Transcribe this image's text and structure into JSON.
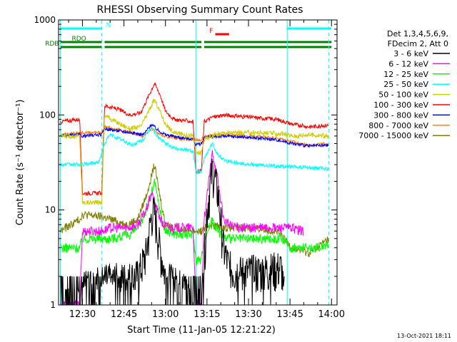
{
  "chart_data": {
    "type": "line",
    "title": "RHESSI Observing Summary Count Rates",
    "xlabel": "Start Time (11-Jan-05 12:21:22)",
    "ylabel": "Count Rate (s⁻¹ detector⁻¹)",
    "y_scale": "log",
    "ylim": [
      1,
      1000
    ],
    "y_ticks": [
      1,
      10,
      100,
      1000
    ],
    "y_tick_labels": [
      "1",
      "10",
      "100",
      "1000"
    ],
    "xlim": [
      "12:21:22",
      "14:02:00"
    ],
    "x_ticks": [
      "12:30",
      "12:45",
      "13:00",
      "13:15",
      "13:30",
      "13:45",
      "14:00"
    ],
    "timestamp": "13-Oct-2021 18:11",
    "legend_header": [
      "Det 1,3,4,5,6,9,",
      "FDecim 2, Att 0"
    ],
    "legend_position": "right",
    "series": [
      {
        "name": "3 - 6 keV",
        "color": "#000000",
        "points": [
          [
            "12:22",
            1
          ],
          [
            "12:29",
            1
          ],
          [
            "12:30",
            1.6
          ],
          [
            "12:38",
            1.8
          ],
          [
            "12:46",
            1.9
          ],
          [
            "12:50",
            2
          ],
          [
            "12:53",
            3.5
          ],
          [
            "12:55",
            9
          ],
          [
            "12:56",
            9.5
          ],
          [
            "12:58",
            4
          ],
          [
            "13:00",
            2
          ],
          [
            "13:02",
            1.8
          ],
          [
            "13:07",
            1.5
          ],
          [
            "13:10",
            1
          ],
          [
            "13:13",
            1
          ],
          [
            "13:15",
            10
          ],
          [
            "13:17",
            28
          ],
          [
            "13:19",
            15
          ],
          [
            "13:21",
            4
          ],
          [
            "13:23",
            2.5
          ],
          [
            "13:27",
            2.2
          ],
          [
            "13:35",
            2.3
          ],
          [
            "13:42",
            2.5
          ],
          [
            "13:43",
            1
          ]
        ]
      },
      {
        "name": "6 - 12 keV",
        "color": "#ff00ff",
        "points": [
          [
            "12:22",
            1
          ],
          [
            "12:29",
            1
          ],
          [
            "12:30",
            6
          ],
          [
            "12:37",
            6
          ],
          [
            "12:40",
            6.5
          ],
          [
            "12:46",
            6.5
          ],
          [
            "12:50",
            7
          ],
          [
            "12:53",
            10
          ],
          [
            "12:55",
            15
          ],
          [
            "12:57",
            10
          ],
          [
            "12:59",
            7
          ],
          [
            "13:02",
            6.5
          ],
          [
            "13:10",
            6.5
          ],
          [
            "13:11",
            1
          ],
          [
            "13:13",
            1
          ],
          [
            "13:14",
            8
          ],
          [
            "13:17",
            42
          ],
          [
            "13:19",
            20
          ],
          [
            "13:21",
            8
          ],
          [
            "13:23",
            7
          ],
          [
            "13:27",
            6.5
          ],
          [
            "13:35",
            6.5
          ],
          [
            "13:45",
            6.5
          ],
          [
            "13:50",
            6
          ]
        ]
      },
      {
        "name": "12 - 25 keV",
        "color": "#00ff00",
        "points": [
          [
            "12:22",
            4
          ],
          [
            "12:29",
            4
          ],
          [
            "12:30",
            5
          ],
          [
            "12:37",
            5
          ],
          [
            "12:40",
            5
          ],
          [
            "12:47",
            5.5
          ],
          [
            "12:51",
            7
          ],
          [
            "12:54",
            12
          ],
          [
            "12:56",
            20
          ],
          [
            "12:58",
            10
          ],
          [
            "13:00",
            6
          ],
          [
            "13:05",
            5.5
          ],
          [
            "13:10",
            5.5
          ],
          [
            "13:11",
            3
          ],
          [
            "13:13",
            3
          ],
          [
            "13:14",
            5
          ],
          [
            "13:17",
            8
          ],
          [
            "13:19",
            6
          ],
          [
            "13:22",
            5
          ],
          [
            "13:30",
            5
          ],
          [
            "13:42",
            5
          ],
          [
            "13:45",
            4
          ],
          [
            "13:55",
            4
          ],
          [
            "13:59",
            4.5
          ]
        ]
      },
      {
        "name": "25 - 50 keV",
        "color": "#00ffff",
        "points": [
          [
            "12:22",
            30
          ],
          [
            "12:29",
            30
          ],
          [
            "12:30",
            30
          ],
          [
            "12:36",
            32
          ],
          [
            "12:38",
            50
          ],
          [
            "12:40",
            62
          ],
          [
            "12:44",
            55
          ],
          [
            "12:48",
            48
          ],
          [
            "12:52",
            55
          ],
          [
            "12:55",
            75
          ],
          [
            "12:57",
            60
          ],
          [
            "13:00",
            50
          ],
          [
            "13:03",
            45
          ],
          [
            "13:10",
            42
          ],
          [
            "13:11",
            25
          ],
          [
            "13:13",
            25
          ],
          [
            "13:14",
            35
          ],
          [
            "13:17",
            50
          ],
          [
            "13:19",
            38
          ],
          [
            "13:22",
            33
          ],
          [
            "13:30",
            30
          ],
          [
            "13:40",
            29
          ],
          [
            "13:50",
            28
          ],
          [
            "13:59",
            27
          ]
        ]
      },
      {
        "name": "50 - 100 keV",
        "color": "#cccc00",
        "points": [
          [
            "12:22",
            60
          ],
          [
            "12:29",
            60
          ],
          [
            "12:30",
            12
          ],
          [
            "12:37",
            12
          ],
          [
            "12:38",
            100
          ],
          [
            "12:42",
            85
          ],
          [
            "12:47",
            72
          ],
          [
            "12:51",
            75
          ],
          [
            "12:54",
            110
          ],
          [
            "12:56",
            145
          ],
          [
            "12:58",
            110
          ],
          [
            "13:00",
            80
          ],
          [
            "13:03",
            65
          ],
          [
            "13:10",
            60
          ],
          [
            "13:11",
            40
          ],
          [
            "13:13",
            40
          ],
          [
            "13:14",
            55
          ],
          [
            "13:18",
            62
          ],
          [
            "13:21",
            65
          ],
          [
            "13:27",
            65
          ],
          [
            "13:35",
            65
          ],
          [
            "13:42",
            63
          ],
          [
            "13:46",
            60
          ],
          [
            "13:52",
            62
          ],
          [
            "13:59",
            60
          ]
        ]
      },
      {
        "name": "100 - 300 keV",
        "color": "#ff0000",
        "points": [
          [
            "12:22",
            85
          ],
          [
            "12:29",
            90
          ],
          [
            "12:30",
            15
          ],
          [
            "12:37",
            15
          ],
          [
            "12:38",
            125
          ],
          [
            "12:43",
            115
          ],
          [
            "12:47",
            100
          ],
          [
            "12:51",
            105
          ],
          [
            "12:54",
            160
          ],
          [
            "12:56",
            215
          ],
          [
            "12:58",
            165
          ],
          [
            "13:00",
            110
          ],
          [
            "13:03",
            90
          ],
          [
            "13:10",
            85
          ],
          [
            "13:11",
            25
          ],
          [
            "13:13",
            26
          ],
          [
            "13:14",
            85
          ],
          [
            "13:17",
            95
          ],
          [
            "13:21",
            100
          ],
          [
            "13:30",
            95
          ],
          [
            "13:40",
            90
          ],
          [
            "13:46",
            80
          ],
          [
            "13:52",
            75
          ],
          [
            "13:59",
            78
          ]
        ]
      },
      {
        "name": "300 - 800 keV",
        "color": "#0000ff",
        "points": [
          [
            "12:22",
            60
          ],
          [
            "12:29",
            62
          ],
          [
            "12:30",
            60
          ],
          [
            "12:37",
            62
          ],
          [
            "12:38",
            72
          ],
          [
            "12:43",
            68
          ],
          [
            "12:48",
            65
          ],
          [
            "12:52",
            62
          ],
          [
            "12:55",
            80
          ],
          [
            "12:57",
            70
          ],
          [
            "13:00",
            62
          ],
          [
            "13:05",
            58
          ],
          [
            "13:10",
            56
          ],
          [
            "13:11",
            48
          ],
          [
            "13:13",
            50
          ],
          [
            "13:14",
            58
          ],
          [
            "13:21",
            60
          ],
          [
            "13:30",
            58
          ],
          [
            "13:40",
            55
          ],
          [
            "13:46",
            50
          ],
          [
            "13:52",
            47
          ],
          [
            "13:59",
            48
          ]
        ]
      },
      {
        "name": "800 - 7000 keV",
        "color": "#ff8000",
        "points": [
          [
            "12:22",
            62
          ],
          [
            "12:29",
            65
          ],
          [
            "12:30",
            65
          ],
          [
            "12:37",
            65
          ],
          [
            "12:38",
            75
          ],
          [
            "12:43",
            70
          ],
          [
            "12:48",
            65
          ],
          [
            "12:52",
            60
          ],
          [
            "12:55",
            72
          ],
          [
            "12:57",
            64
          ],
          [
            "13:00",
            60
          ],
          [
            "13:05",
            56
          ],
          [
            "13:10",
            55
          ],
          [
            "13:11",
            55
          ],
          [
            "13:13",
            55
          ],
          [
            "13:14",
            60
          ],
          [
            "13:21",
            62
          ],
          [
            "13:30",
            60
          ],
          [
            "13:40",
            57
          ],
          [
            "13:46",
            52
          ],
          [
            "13:52",
            48
          ],
          [
            "13:59",
            50
          ]
        ]
      },
      {
        "name": "7000 - 15000 keV",
        "color": "#808000",
        "points": [
          [
            "12:22",
            6
          ],
          [
            "12:29",
            8
          ],
          [
            "12:30",
            9
          ],
          [
            "12:37",
            8.5
          ],
          [
            "12:40",
            8
          ],
          [
            "12:46",
            7
          ],
          [
            "12:50",
            8
          ],
          [
            "12:53",
            14
          ],
          [
            "12:56",
            30
          ],
          [
            "12:58",
            14
          ],
          [
            "13:00",
            7
          ],
          [
            "13:05",
            6.5
          ],
          [
            "13:10",
            6
          ],
          [
            "13:11",
            6
          ],
          [
            "13:13",
            6
          ],
          [
            "13:16",
            7
          ],
          [
            "13:22",
            6.5
          ],
          [
            "13:30",
            6.5
          ],
          [
            "13:40",
            6
          ],
          [
            "13:46",
            4
          ],
          [
            "13:52",
            3.5
          ],
          [
            "13:59",
            5
          ]
        ]
      }
    ],
    "status_bars": [
      {
        "name": "N",
        "color": "#00ffff",
        "level": 1,
        "segments": [
          [
            "12:22",
            "12:37"
          ],
          [
            "13:44",
            "14:00"
          ]
        ]
      },
      {
        "name": "F",
        "color": "#ff0000",
        "level": 2,
        "segments": [
          [
            "13:18",
            "13:23"
          ]
        ]
      },
      {
        "name": "RDO",
        "color": "#008000",
        "level": 3,
        "segments": [
          [
            "12:22",
            "12:37"
          ],
          [
            "12:38",
            "13:11"
          ],
          [
            "13:11",
            "13:13"
          ],
          [
            "13:14",
            "14:00"
          ]
        ]
      },
      {
        "name": "RDB",
        "color": "#008000",
        "level": 4,
        "segments": [
          [
            "12:22",
            "12:37"
          ],
          [
            "12:38",
            "13:11"
          ],
          [
            "13:11",
            "13:13"
          ],
          [
            "13:14",
            "14:00"
          ]
        ]
      }
    ],
    "vlines": [
      {
        "time": "12:22",
        "color": "#00ffff",
        "style": "solid"
      },
      {
        "time": "12:37",
        "color": "#00ffff",
        "style": "dashed"
      },
      {
        "time": "13:11",
        "color": "#00ffff",
        "style": "solid"
      },
      {
        "time": "13:44",
        "color": "#00ffff",
        "style": "solid"
      },
      {
        "time": "13:59",
        "color": "#00ffff",
        "style": "dashed"
      }
    ]
  }
}
